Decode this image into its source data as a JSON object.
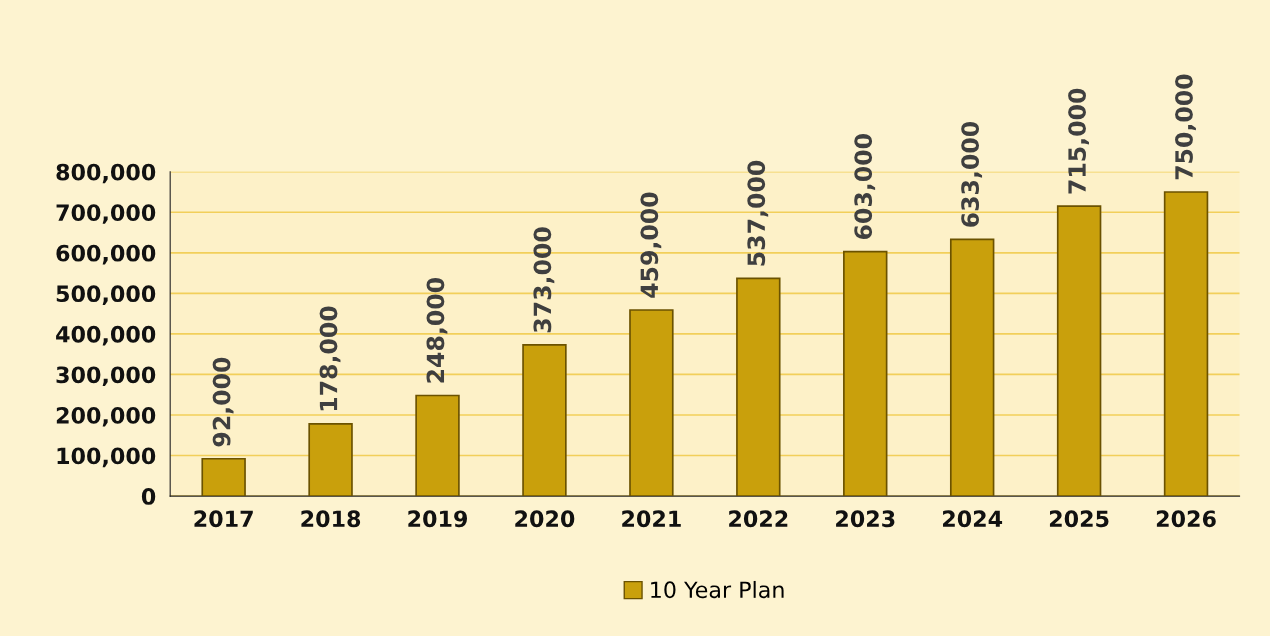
{
  "chart_data": {
    "type": "bar",
    "categories": [
      "2017",
      "2018",
      "2019",
      "2020",
      "2021",
      "2022",
      "2023",
      "2024",
      "2025",
      "2026"
    ],
    "series": [
      {
        "name": "10 Year Plan",
        "color": "#c9a00c",
        "values": [
          92000,
          178000,
          248000,
          373000,
          459000,
          537000,
          603000,
          633000,
          715000,
          750000
        ]
      }
    ],
    "ylim": [
      0,
      800000
    ],
    "yticks": [
      {
        "value": 0,
        "label": "0"
      },
      {
        "value": 100000,
        "label": "100,000"
      },
      {
        "value": 200000,
        "label": "200,000"
      },
      {
        "value": 300000,
        "label": "300,000"
      },
      {
        "value": 400000,
        "label": "400,000"
      },
      {
        "value": 500000,
        "label": "500,000"
      },
      {
        "value": 600000,
        "label": "600,000"
      },
      {
        "value": 700000,
        "label": "700,000"
      },
      {
        "value": 800000,
        "label": "800,000"
      }
    ],
    "value_labels": [
      "92,000",
      "178,000",
      "248,000",
      "373,000",
      "459,000",
      "537,000",
      "603,000",
      "633,000",
      "715,000",
      "750,000"
    ],
    "grid": "y",
    "legend": "bottom"
  }
}
